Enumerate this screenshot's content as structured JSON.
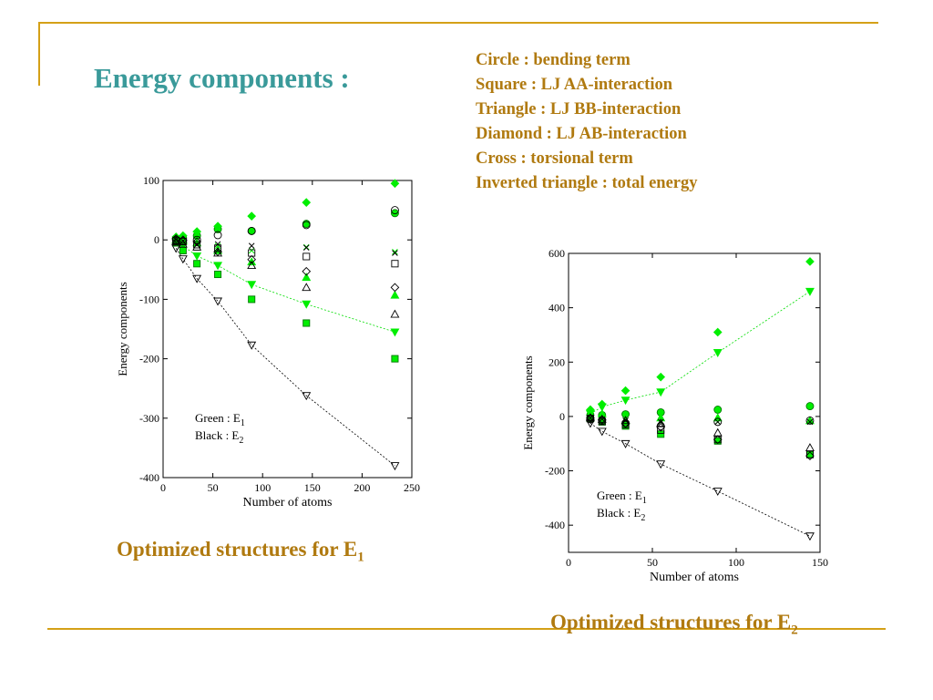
{
  "slide": {
    "title": "Energy components :",
    "legend_key": [
      "Circle : bending term",
      "Square : LJ  AA-interaction",
      "Triangle : LJ  BB-interaction",
      "Diamond : LJ  AB-interaction",
      "Cross : torsional term",
      "Inverted triangle : total energy"
    ],
    "captions": [
      {
        "text": "Optimized structures for E",
        "sub": "1"
      },
      {
        "text": "Optimized structures for E",
        "sub": "2"
      }
    ],
    "colors": {
      "title": "#3a9a9a",
      "text": "#b07a10",
      "rule": "#d4a017",
      "green": "#00ee00",
      "black": "#000000"
    }
  },
  "chart_data": [
    {
      "type": "scatter",
      "xlabel": "Number of atoms",
      "ylabel": "Energy components",
      "xlim": [
        0,
        250
      ],
      "ylim": [
        -400,
        100
      ],
      "xticks": [
        0,
        50,
        100,
        150,
        200,
        250
      ],
      "yticks": [
        -400,
        -300,
        -200,
        -100,
        0,
        100
      ],
      "annotation": [
        {
          "label": "Green : E",
          "sub": "1"
        },
        {
          "label": "Black : E",
          "sub": "2"
        }
      ],
      "x": [
        13,
        20,
        34,
        55,
        89,
        144,
        233
      ],
      "series": [
        {
          "marker": "circle",
          "color": "green",
          "values": [
            2,
            3,
            7,
            18,
            15,
            27,
            45
          ]
        },
        {
          "marker": "square",
          "color": "green",
          "values": [
            -5,
            -18,
            -40,
            -58,
            -100,
            -140,
            -200
          ]
        },
        {
          "marker": "triangle",
          "color": "green",
          "values": [
            0,
            -2,
            -5,
            -18,
            -37,
            -63,
            -93
          ]
        },
        {
          "marker": "diamond",
          "color": "green",
          "values": [
            5,
            7,
            14,
            23,
            40,
            63,
            95
          ]
        },
        {
          "marker": "cross",
          "color": "green",
          "values": [
            -1,
            -3,
            -6,
            -10,
            -18,
            -12,
            -20
          ]
        },
        {
          "marker": "invtriangle",
          "color": "green",
          "values": [
            -3,
            -10,
            -27,
            -43,
            -75,
            -108,
            -155
          ],
          "line": true
        },
        {
          "marker": "circle",
          "color": "black",
          "values": [
            0,
            -2,
            0,
            8,
            15,
            25,
            50
          ]
        },
        {
          "marker": "square",
          "color": "black",
          "values": [
            -1,
            -3,
            -8,
            -14,
            -22,
            -28,
            -40
          ]
        },
        {
          "marker": "triangle",
          "color": "black",
          "values": [
            -2,
            -7,
            -12,
            -22,
            -43,
            -80,
            -125
          ]
        },
        {
          "marker": "diamond",
          "color": "black",
          "values": [
            2,
            0,
            -3,
            -20,
            -33,
            -53,
            -80
          ]
        },
        {
          "marker": "cross",
          "color": "black",
          "values": [
            0,
            -2,
            -8,
            -7,
            -10,
            -13,
            -22
          ]
        },
        {
          "marker": "invtriangle",
          "color": "black",
          "values": [
            -14,
            -32,
            -65,
            -103,
            -177,
            -262,
            -380
          ],
          "line": true
        }
      ]
    },
    {
      "type": "scatter",
      "xlabel": "Number of atoms",
      "ylabel": "Energy components",
      "xlim": [
        0,
        150
      ],
      "ylim": [
        -500,
        600
      ],
      "xticks": [
        0,
        50,
        100,
        150
      ],
      "yticks": [
        -400,
        -200,
        0,
        200,
        400,
        600
      ],
      "annotation": [
        {
          "label": "Green : E",
          "sub": "1"
        },
        {
          "label": "Black : E",
          "sub": "2"
        }
      ],
      "x": [
        13,
        20,
        34,
        55,
        89,
        144
      ],
      "series": [
        {
          "marker": "circle",
          "color": "green",
          "values": [
            5,
            5,
            8,
            15,
            25,
            38
          ]
        },
        {
          "marker": "square",
          "color": "green",
          "values": [
            -8,
            -20,
            -35,
            -65,
            -90,
            -140
          ]
        },
        {
          "marker": "triangle",
          "color": "green",
          "values": [
            -5,
            10,
            -15,
            -5,
            -5,
            -15
          ]
        },
        {
          "marker": "diamond",
          "color": "green",
          "values": [
            25,
            45,
            95,
            145,
            310,
            570
          ]
        },
        {
          "marker": "cross",
          "color": "green",
          "values": [
            -5,
            -10,
            -15,
            -20,
            -20,
            -20
          ]
        },
        {
          "marker": "invtriangle",
          "color": "green",
          "values": [
            10,
            35,
            60,
            90,
            235,
            460
          ],
          "line": true
        },
        {
          "marker": "circle",
          "color": "black",
          "values": [
            -10,
            -15,
            -25,
            -35,
            -20,
            -15
          ]
        },
        {
          "marker": "square",
          "color": "black",
          "values": [
            -8,
            -18,
            -30,
            -50,
            -85,
            -140
          ]
        },
        {
          "marker": "triangle",
          "color": "black",
          "values": [
            -5,
            -10,
            -15,
            -25,
            -60,
            -115
          ]
        },
        {
          "marker": "diamond",
          "color": "black",
          "values": [
            -5,
            -12,
            -25,
            -40,
            -85,
            -145
          ]
        },
        {
          "marker": "cross",
          "color": "black",
          "values": [
            -5,
            -10,
            -15,
            -20,
            -20,
            -20
          ]
        },
        {
          "marker": "invtriangle",
          "color": "black",
          "values": [
            -25,
            -55,
            -100,
            -175,
            -275,
            -440
          ],
          "line": true
        }
      ]
    }
  ]
}
